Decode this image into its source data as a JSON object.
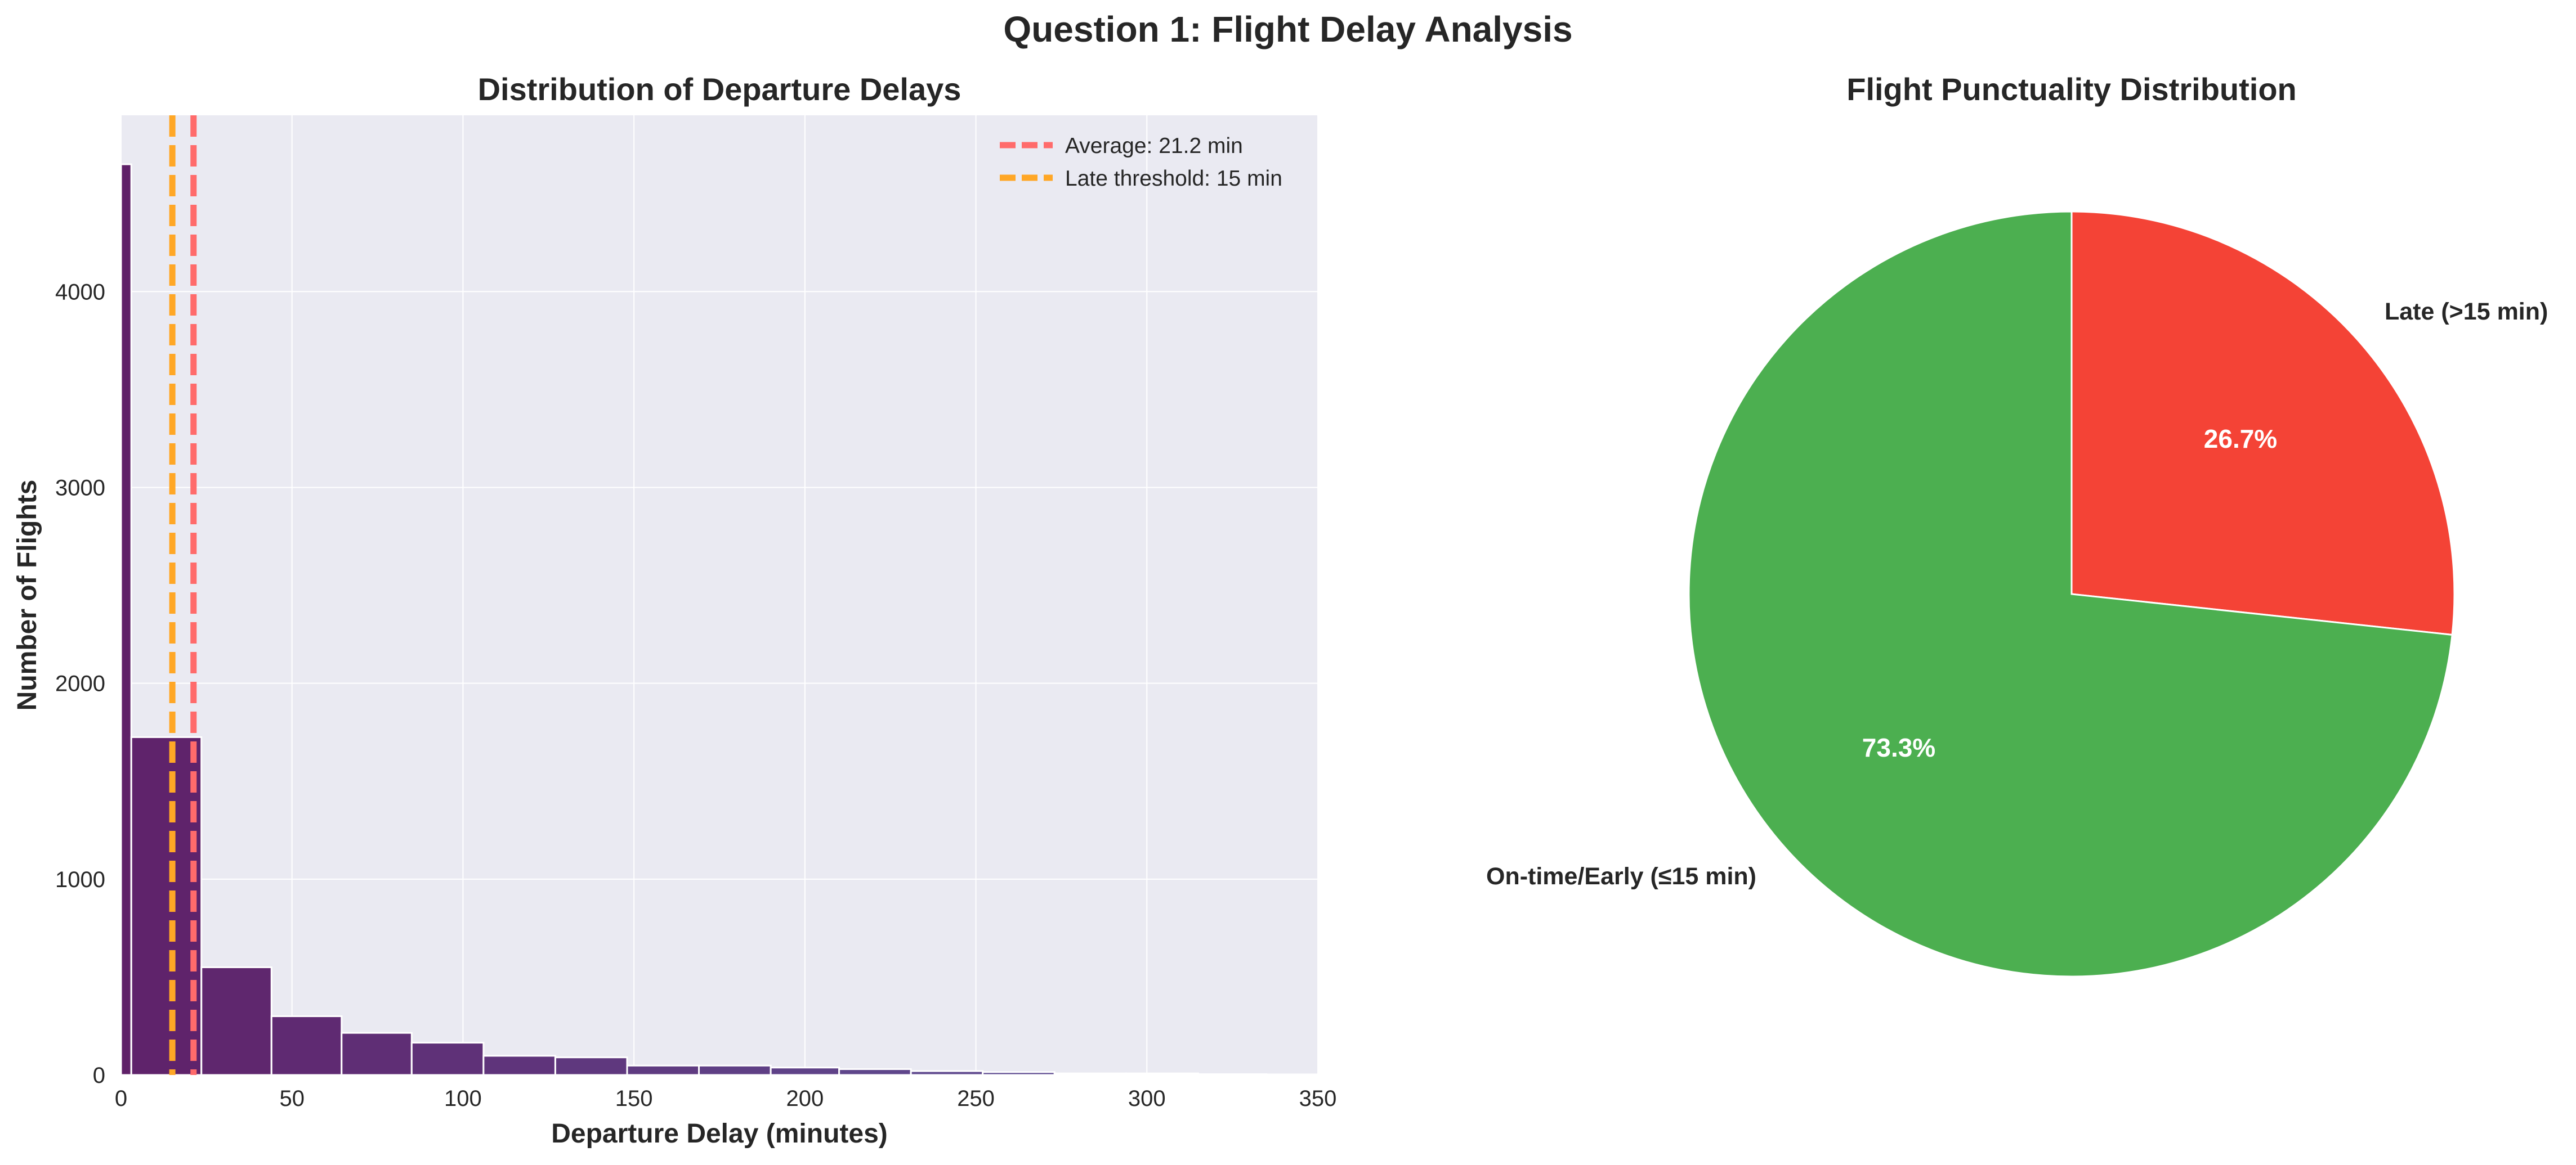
{
  "figure": {
    "title": "Question 1: Flight Delay Analysis"
  },
  "chart_data": [
    {
      "type": "bar",
      "title": "Distribution of Departure Delays",
      "xlabel": "Departure Delay (minutes)",
      "ylabel": "Number of Flights",
      "xlim": [
        0,
        350
      ],
      "ylim": [
        0,
        4900
      ],
      "x_ticks": [
        "0",
        "50",
        "100",
        "150",
        "200",
        "250",
        "300",
        "350"
      ],
      "y_ticks": [
        "0",
        "1000",
        "2000",
        "3000",
        "4000"
      ],
      "grid": true,
      "bins": [
        {
          "start": 0,
          "end": 3,
          "value": 4650
        },
        {
          "start": 3,
          "end": 23.5,
          "value": 1725
        },
        {
          "start": 23.5,
          "end": 44,
          "value": 550
        },
        {
          "start": 44,
          "end": 64.5,
          "value": 300
        },
        {
          "start": 64.5,
          "end": 85,
          "value": 215
        },
        {
          "start": 85,
          "end": 106,
          "value": 165
        },
        {
          "start": 106,
          "end": 127,
          "value": 98
        },
        {
          "start": 127,
          "end": 148,
          "value": 90
        },
        {
          "start": 148,
          "end": 169,
          "value": 48
        },
        {
          "start": 169,
          "end": 190,
          "value": 48
        },
        {
          "start": 190,
          "end": 210,
          "value": 38
        },
        {
          "start": 210,
          "end": 231,
          "value": 30
        },
        {
          "start": 231,
          "end": 252,
          "value": 20
        },
        {
          "start": 252,
          "end": 273,
          "value": 15
        },
        {
          "start": 273,
          "end": 294,
          "value": 8
        },
        {
          "start": 294,
          "end": 315,
          "value": 8
        },
        {
          "start": 315,
          "end": 335,
          "value": 4
        },
        {
          "start": 335,
          "end": 350,
          "value": 3
        }
      ],
      "reference_lines": [
        {
          "name": "Average: 21.2 min",
          "x": 21.2,
          "color": "#ff6b6b"
        },
        {
          "name": "Late threshold: 15 min",
          "x": 15,
          "color": "#ffa726"
        }
      ],
      "legend_position": "top-right",
      "colors": {
        "background": "#eaeaf2",
        "grid": "#ffffff",
        "bar_dark": "#5f2068",
        "bar_light": "#5f5a9e"
      }
    },
    {
      "type": "pie",
      "title": "Flight Punctuality Distribution",
      "slices": [
        {
          "label": "Late (>15 min)",
          "value": 26.7,
          "pct_label": "26.7%",
          "color": "#f44336"
        },
        {
          "label": "On-time/Early (≤15 min)",
          "value": 73.3,
          "pct_label": "73.3%",
          "color": "#4caf50"
        }
      ],
      "start_angle_deg": 90,
      "direction": "clockwise"
    }
  ]
}
